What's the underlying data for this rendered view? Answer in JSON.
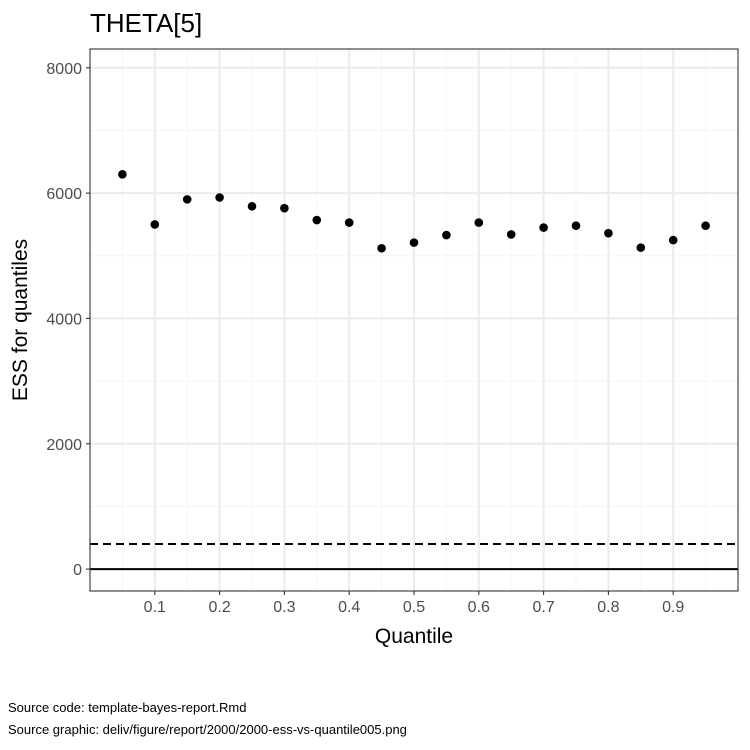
{
  "chart_data": {
    "type": "scatter",
    "title": "THETA[5]",
    "xlabel": "Quantile",
    "ylabel": "ESS for quantiles",
    "xlim": [
      0.0,
      1.0
    ],
    "ylim": [
      -350,
      8300
    ],
    "x_ticks": [
      0.1,
      0.2,
      0.3,
      0.4,
      0.5,
      0.6,
      0.7,
      0.8,
      0.9
    ],
    "x_tick_labels": [
      "0.1",
      "0.2",
      "0.3",
      "0.4",
      "0.5",
      "0.6",
      "0.7",
      "0.8",
      "0.9"
    ],
    "y_ticks": [
      0,
      2000,
      4000,
      6000,
      8000
    ],
    "y_tick_labels": [
      "0",
      "2000",
      "4000",
      "6000",
      "8000"
    ],
    "grid": true,
    "legend": "none",
    "reference_lines": [
      {
        "y": 0,
        "style": "solid"
      },
      {
        "y": 400,
        "style": "dashed"
      }
    ],
    "x": [
      0.05,
      0.1,
      0.15,
      0.2,
      0.25,
      0.3,
      0.35,
      0.4,
      0.45,
      0.5,
      0.55,
      0.6,
      0.65,
      0.7,
      0.75,
      0.8,
      0.85,
      0.9,
      0.95
    ],
    "y": [
      6300,
      5500,
      5900,
      5930,
      5790,
      5760,
      5570,
      5530,
      5120,
      5210,
      5330,
      5530,
      5340,
      5450,
      5480,
      5360,
      5130,
      5250,
      5480
    ],
    "colors": {
      "points": "#000000",
      "grid_major": "#ebebeb",
      "grid_minor": "#f5f5f5",
      "panel_border": "#333333"
    }
  },
  "captions": {
    "source_code": "Source code: template-bayes-report.Rmd",
    "source_graphic": "Source graphic: deliv/figure/report/2000/2000-ess-vs-quantile005.png"
  }
}
